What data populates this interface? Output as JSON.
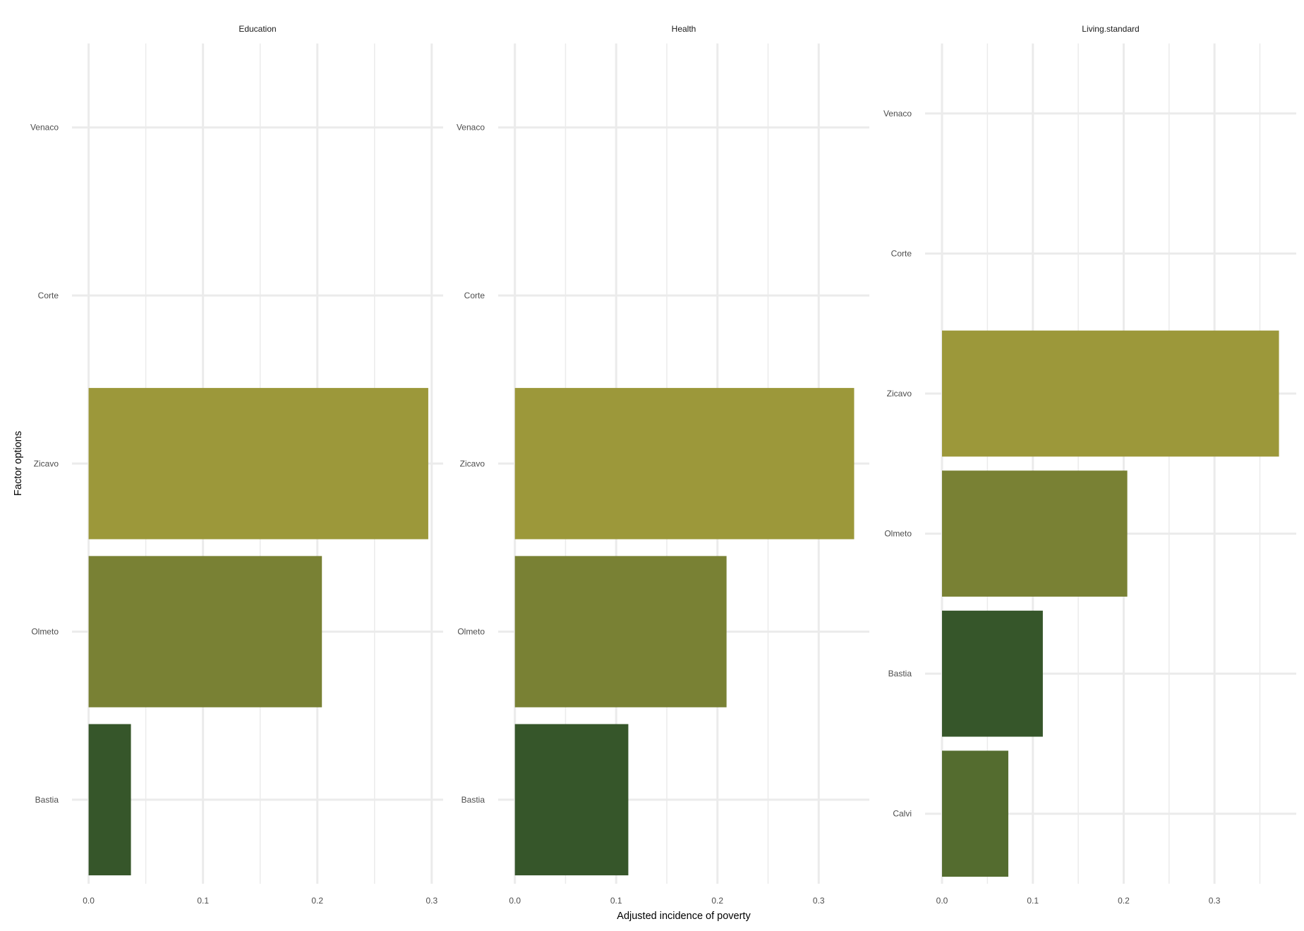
{
  "chart_data": {
    "type": "bar",
    "orientation": "horizontal",
    "facet_scales": "free_y",
    "xlabel": "Adjusted incidence of poverty",
    "ylabel": "Factor options",
    "grid": true,
    "x_ticks": [
      "0.0",
      "0.1",
      "0.2",
      "0.3"
    ],
    "colors": {
      "Zicavo": "#9c983a",
      "Olmeto": "#798134",
      "Bastia": "#36562a",
      "Calvi": "#546c2f"
    },
    "panels": [
      {
        "title": "Education",
        "xlim": [
          0,
          0.31
        ],
        "categories": [
          "Bastia",
          "Olmeto",
          "Zicavo",
          "Corte",
          "Venaco"
        ],
        "values": [
          0.037,
          0.204,
          0.297,
          null,
          null
        ]
      },
      {
        "title": "Health",
        "xlim": [
          0,
          0.35
        ],
        "categories": [
          "Bastia",
          "Olmeto",
          "Zicavo",
          "Corte",
          "Venaco"
        ],
        "values": [
          0.112,
          0.209,
          0.335,
          null,
          null
        ]
      },
      {
        "title": "Living.standard",
        "xlim": [
          0,
          0.39
        ],
        "categories": [
          "Calvi",
          "Bastia",
          "Olmeto",
          "Zicavo",
          "Corte",
          "Venaco"
        ],
        "values": [
          0.073,
          0.111,
          0.204,
          0.371,
          null,
          null
        ]
      }
    ]
  }
}
